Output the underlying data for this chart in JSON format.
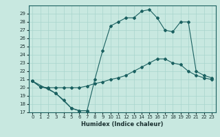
{
  "xlabel": "Humidex (Indice chaleur)",
  "xlim": [
    -0.5,
    23.5
  ],
  "ylim": [
    17,
    30
  ],
  "yticks": [
    17,
    18,
    19,
    20,
    21,
    22,
    23,
    24,
    25,
    26,
    27,
    28,
    29
  ],
  "xticks": [
    0,
    1,
    2,
    3,
    4,
    5,
    6,
    7,
    8,
    9,
    10,
    11,
    12,
    13,
    14,
    15,
    16,
    17,
    18,
    19,
    20,
    21,
    22,
    23
  ],
  "bg_color": "#c8e8e0",
  "line_color": "#1a6060",
  "grid_color": "#a8d4cc",
  "s1_x": [
    0,
    1,
    2,
    3,
    4,
    5,
    6,
    7
  ],
  "s1_y": [
    20.8,
    20.1,
    19.9,
    19.3,
    18.5,
    17.5,
    17.2,
    17.2
  ],
  "s2_x": [
    0,
    3,
    5,
    6,
    7,
    8,
    9,
    10,
    11,
    12,
    13,
    14,
    15,
    16,
    17,
    18,
    19,
    20,
    21,
    22,
    23
  ],
  "s2_y": [
    20.8,
    19.3,
    17.5,
    17.2,
    17.2,
    21.0,
    24.5,
    27.5,
    28.0,
    28.5,
    28.5,
    29.3,
    29.5,
    28.5,
    27.0,
    26.8,
    28.0,
    28.0,
    22.0,
    21.5,
    21.2
  ],
  "s3_x": [
    0,
    1,
    2,
    3,
    4,
    5,
    6,
    7,
    8,
    9,
    10,
    11,
    12,
    13,
    14,
    15,
    16,
    17,
    18,
    19,
    20,
    21,
    22,
    23
  ],
  "s3_y": [
    20.8,
    20.1,
    20.0,
    20.0,
    20.0,
    20.0,
    20.0,
    20.2,
    20.5,
    20.7,
    21.0,
    21.2,
    21.5,
    22.0,
    22.5,
    23.0,
    23.5,
    23.5,
    23.0,
    22.8,
    22.0,
    21.5,
    21.2,
    21.0
  ]
}
